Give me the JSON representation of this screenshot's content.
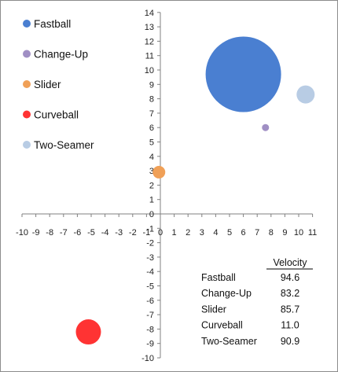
{
  "chart_data": {
    "type": "bubble",
    "xlim": [
      -10,
      11
    ],
    "ylim": [
      -10,
      14
    ],
    "x_ticks": [
      -10,
      -9,
      -8,
      -7,
      -6,
      -5,
      -4,
      -3,
      -2,
      -1,
      0,
      1,
      2,
      3,
      4,
      5,
      6,
      7,
      8,
      9,
      10,
      11
    ],
    "y_ticks": [
      14,
      13,
      12,
      11,
      10,
      9,
      8,
      7,
      6,
      5,
      4,
      3,
      2,
      1,
      0,
      -1,
      -2,
      -3,
      -4,
      -5,
      -6,
      -7,
      -8,
      -9,
      -10
    ],
    "grid": false,
    "legend_placement": "top-left",
    "series": [
      {
        "name": "Fastball",
        "x": 6.0,
        "y": 9.7,
        "size": 94.6,
        "color": "#4a7fd1"
      },
      {
        "name": "Change-Up",
        "x": 7.6,
        "y": 6.0,
        "size": 83.2,
        "color": "#a08fc4"
      },
      {
        "name": "Slider",
        "x": -0.1,
        "y": 2.9,
        "size": 85.7,
        "color": "#f0a057"
      },
      {
        "name": "Curveball",
        "x": -5.2,
        "y": -8.2,
        "size": 11.0,
        "color": "#ff3333"
      },
      {
        "name": "Two-Seamer",
        "x": 10.5,
        "y": 8.3,
        "size": 90.9,
        "color": "#b8cce4"
      }
    ],
    "table": {
      "header": "Velocity",
      "rows": [
        {
          "label": "Fastball",
          "value": "94.6"
        },
        {
          "label": "Change-Up",
          "value": "83.2"
        },
        {
          "label": "Slider",
          "value": "85.7"
        },
        {
          "label": "Curveball",
          "value": "11.0"
        },
        {
          "label": "Two-Seamer",
          "value": "90.9"
        }
      ]
    }
  }
}
